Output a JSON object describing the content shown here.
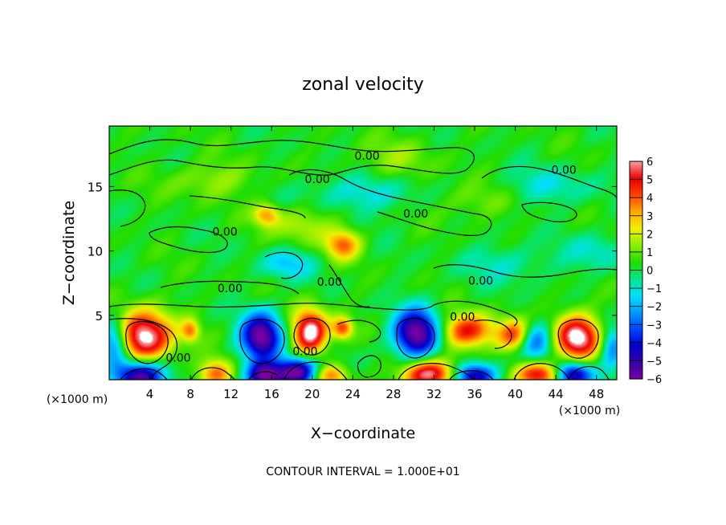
{
  "chart_data": {
    "type": "heatmap",
    "title": "zonal velocity",
    "xlabel": "X−coordinate",
    "ylabel": "Z−coordinate",
    "x_unit_left": "(×1000 m)",
    "x_unit_right": "(×1000 m)",
    "footer": "CONTOUR INTERVAL = 1.000E+01",
    "xlim": [
      0,
      50
    ],
    "ylim": [
      0,
      19.7
    ],
    "x_ticks": [
      4,
      8,
      12,
      16,
      20,
      24,
      28,
      32,
      36,
      40,
      44,
      48
    ],
    "x_tick_labels": [
      "4",
      "8",
      "12",
      "16",
      "20",
      "24",
      "28",
      "32",
      "36",
      "40",
      "44",
      "48"
    ],
    "y_ticks": [
      5,
      10,
      15
    ],
    "y_tick_labels": [
      "5",
      "10",
      "15"
    ],
    "colorbar": {
      "range": [
        -6,
        6
      ],
      "ticks": [
        6,
        5,
        4,
        3,
        2,
        1,
        0,
        -1,
        -2,
        -3,
        -4,
        -5,
        -6
      ],
      "tick_labels": [
        "6",
        "5",
        "4",
        "3",
        "2",
        "1",
        "0",
        "−1",
        "−2",
        "−3",
        "−4",
        "−5",
        "−6"
      ],
      "colors": [
        "#7a00a0",
        "#3a00a8",
        "#0000cc",
        "#0044ff",
        "#0099ff",
        "#00e0ff",
        "#00e68c",
        "#22dd00",
        "#88ee00",
        "#f0f000",
        "#ffaa00",
        "#ff4400",
        "#e80000",
        "#ff9999"
      ]
    },
    "contour_labels": [
      {
        "text": "0.00",
        "x": 25.4,
        "z": 17.4
      },
      {
        "text": "0.00",
        "x": 20.5,
        "z": 15.6
      },
      {
        "text": "0.00",
        "x": 44.8,
        "z": 16.3
      },
      {
        "text": "0.00",
        "x": 30.2,
        "z": 12.9
      },
      {
        "text": "0.00",
        "x": 11.4,
        "z": 11.5
      },
      {
        "text": "0.00",
        "x": 21.7,
        "z": 7.6
      },
      {
        "text": "0.00",
        "x": 36.6,
        "z": 7.7
      },
      {
        "text": "0.00",
        "x": 11.9,
        "z": 7.1
      },
      {
        "text": "0.00",
        "x": 34.8,
        "z": 4.9
      },
      {
        "text": "0.00",
        "x": 6.8,
        "z": 1.7
      },
      {
        "text": "0.00",
        "x": 19.3,
        "z": 2.2
      }
    ],
    "features": [
      {
        "x": 3.5,
        "z": 3.3,
        "sx": 1.9,
        "sz": 1.4,
        "v": 6.5
      },
      {
        "x": 3.0,
        "z": 0.3,
        "sx": 1.7,
        "sz": 0.9,
        "v": -6.5
      },
      {
        "x": 0.5,
        "z": 2.8,
        "sx": 1.0,
        "sz": 1.3,
        "v": -4.0
      },
      {
        "x": 8.0,
        "z": 3.8,
        "sx": 0.6,
        "sz": 0.6,
        "v": 3.0
      },
      {
        "x": 10.5,
        "z": 0.5,
        "sx": 1.2,
        "sz": 0.8,
        "v": 3.5
      },
      {
        "x": 15.0,
        "z": 3.3,
        "sx": 1.4,
        "sz": 1.3,
        "v": -6.5
      },
      {
        "x": 15.3,
        "z": 0.3,
        "sx": 1.2,
        "sz": 0.7,
        "v": -5.5
      },
      {
        "x": 19.8,
        "z": 3.7,
        "sx": 1.2,
        "sz": 1.2,
        "v": 6.5
      },
      {
        "x": 18.5,
        "z": 0.6,
        "sx": 1.5,
        "sz": 0.8,
        "v": -6.5
      },
      {
        "x": 21.8,
        "z": 0.3,
        "sx": 1.2,
        "sz": 0.6,
        "v": 3.5
      },
      {
        "x": 23.0,
        "z": 4.0,
        "sx": 0.7,
        "sz": 0.6,
        "v": 4.0
      },
      {
        "x": 30.3,
        "z": 3.6,
        "sx": 1.6,
        "sz": 1.3,
        "v": -6.5
      },
      {
        "x": 31.5,
        "z": 0.4,
        "sx": 1.8,
        "sz": 0.8,
        "v": 6.0
      },
      {
        "x": 35.3,
        "z": 3.8,
        "sx": 1.9,
        "sz": 0.9,
        "v": 4.5
      },
      {
        "x": 36.0,
        "z": 0.3,
        "sx": 1.5,
        "sz": 0.7,
        "v": -5.5
      },
      {
        "x": 40.0,
        "z": 3.4,
        "sx": 1.2,
        "sz": 0.9,
        "v": 4.5
      },
      {
        "x": 42.6,
        "z": 0.4,
        "sx": 1.8,
        "sz": 0.7,
        "v": 5.5
      },
      {
        "x": 42.0,
        "z": 3.0,
        "sx": 1.3,
        "sz": 1.0,
        "v": -4.0
      },
      {
        "x": 46.2,
        "z": 3.3,
        "sx": 1.6,
        "sz": 1.2,
        "v": 6.5
      },
      {
        "x": 45.5,
        "z": 0.4,
        "sx": 1.4,
        "sz": 0.7,
        "v": -6.5
      },
      {
        "x": 49.5,
        "z": 2.5,
        "sx": 0.8,
        "sz": 1.2,
        "v": -3.0
      },
      {
        "x": 23.0,
        "z": 10.5,
        "sx": 1.2,
        "sz": 0.8,
        "v": 3.5
      },
      {
        "x": 15.5,
        "z": 12.8,
        "sx": 0.9,
        "sz": 0.6,
        "v": 3.0
      },
      {
        "x": 17.5,
        "z": 9.0,
        "sx": 1.8,
        "sz": 0.8,
        "v": -2.0
      },
      {
        "x": 19.0,
        "z": 12.0,
        "sx": 2.0,
        "sz": 1.0,
        "v": 1.6
      },
      {
        "x": 25.0,
        "z": 14.5,
        "sx": 4.0,
        "sz": 1.0,
        "v": -1.5
      },
      {
        "x": 43.0,
        "z": 15.0,
        "sx": 3.5,
        "sz": 1.0,
        "v": -1.3
      },
      {
        "x": 39.0,
        "z": 9.0,
        "sx": 3.0,
        "sz": 1.0,
        "v": -1.2
      },
      {
        "x": 48.0,
        "z": 10.0,
        "sx": 2.0,
        "sz": 1.0,
        "v": -1.3
      },
      {
        "x": 10.0,
        "z": 15.5,
        "sx": 3.0,
        "sz": 1.0,
        "v": 1.2
      },
      {
        "x": 28.0,
        "z": 17.0,
        "sx": 3.0,
        "sz": 1.2,
        "v": 1.0
      },
      {
        "x": 36.0,
        "z": 14.0,
        "sx": 3.0,
        "sz": 1.0,
        "v": 1.0
      }
    ]
  }
}
